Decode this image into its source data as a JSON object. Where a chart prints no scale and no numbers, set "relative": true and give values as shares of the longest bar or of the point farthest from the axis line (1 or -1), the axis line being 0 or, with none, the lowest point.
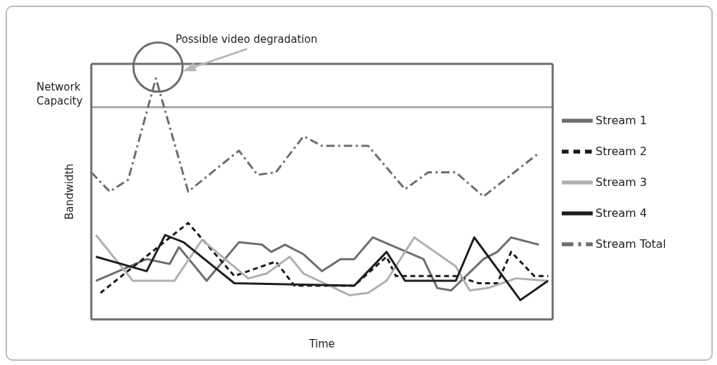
{
  "chart_data": {
    "type": "line",
    "relative": true,
    "xlabel": "Time",
    "ylabel": "Bandwidth",
    "legend": "right",
    "marker": "none",
    "categories": [
      null,
      null,
      null,
      null,
      null,
      null,
      null,
      null,
      null,
      null,
      null,
      null,
      null,
      null,
      null,
      null,
      null,
      null,
      null,
      null,
      null,
      null,
      null,
      null,
      null,
      null,
      null,
      null,
      null,
      null,
      null,
      null,
      null,
      null,
      null,
      null,
      null,
      null,
      null,
      null,
      null,
      null,
      null,
      null,
      null,
      null,
      null,
      null,
      null,
      null,
      null,
      null,
      null,
      null,
      null,
      null,
      null,
      null,
      null,
      null,
      null,
      null,
      null,
      null,
      null,
      null,
      null,
      null,
      null,
      null,
      null,
      null,
      null,
      null,
      null,
      null,
      null,
      null,
      null,
      null,
      null,
      null,
      null,
      null,
      null,
      null,
      null,
      null,
      null,
      null,
      null,
      null,
      null,
      null,
      null,
      null,
      null,
      null,
      null,
      null,
      null
    ],
    "annotations": [
      "Possible video degradation"
    ],
    "ref_lines": [
      {
        "axis": "y",
        "value": 0.88,
        "label": "Network Capacity",
        "color": "#aaaaaa"
      }
    ],
    "series": [
      {
        "name": "Stream 1",
        "color": "#6d6d6d",
        "line_style": "solid",
        "values": [
          null,
          0.16,
          null,
          null,
          null,
          null,
          null,
          null,
          null,
          null,
          null,
          null,
          0.25,
          null,
          null,
          null,
          null,
          0.23,
          null,
          0.3,
          null,
          null,
          null,
          null,
          null,
          0.16,
          null,
          null,
          null,
          null,
          null,
          null,
          0.32,
          null,
          null,
          null,
          null,
          0.31,
          null,
          0.28,
          null,
          null,
          0.31,
          null,
          null,
          null,
          0.27,
          null,
          null,
          null,
          0.2,
          null,
          null,
          null,
          0.25,
          null,
          null,
          0.25,
          null,
          null,
          null,
          0.34,
          null,
          null,
          null,
          null,
          null,
          null,
          null,
          null,
          null,
          null,
          0.25,
          null,
          null,
          0.13,
          null,
          null,
          0.12,
          null,
          null,
          null,
          null,
          null,
          null,
          0.25,
          null,
          null,
          0.28,
          null,
          null,
          0.34,
          null,
          null,
          null,
          null,
          null,
          0.31,
          null,
          null,
          null
        ]
      },
      {
        "name": "Stream 2",
        "color": "#1a1a1a",
        "line_style": "dashed",
        "values": [
          null,
          null,
          0.11,
          null,
          null,
          null,
          null,
          null,
          null,
          null,
          null,
          null,
          null,
          null,
          null,
          null,
          null,
          null,
          null,
          null,
          null,
          0.4,
          null,
          null,
          null,
          null,
          null,
          null,
          null,
          null,
          null,
          0.18,
          null,
          null,
          null,
          null,
          null,
          null,
          null,
          null,
          0.24,
          null,
          null,
          null,
          0.14,
          null,
          null,
          null,
          null,
          null,
          null,
          null,
          null,
          null,
          null,
          null,
          null,
          0.14,
          null,
          null,
          null,
          null,
          null,
          null,
          0.26,
          null,
          0.18,
          null,
          null,
          null,
          null,
          null,
          null,
          null,
          null,
          null,
          null,
          null,
          null,
          0.18,
          null,
          null,
          null,
          null,
          0.15,
          null,
          null,
          null,
          0.15,
          null,
          null,
          0.28,
          null,
          null,
          null,
          null,
          0.18,
          null,
          null,
          0.18,
          null
        ]
      },
      {
        "name": "Stream 3",
        "color": "#b0b0b0",
        "line_style": "solid",
        "values": [
          null,
          0.35,
          null,
          null,
          null,
          null,
          null,
          null,
          null,
          0.16,
          null,
          null,
          null,
          null,
          null,
          null,
          null,
          null,
          0.16,
          null,
          null,
          null,
          null,
          null,
          0.33,
          null,
          null,
          null,
          null,
          null,
          null,
          null,
          null,
          null,
          0.17,
          null,
          null,
          null,
          0.19,
          null,
          null,
          null,
          null,
          0.26,
          null,
          null,
          0.19,
          null,
          null,
          null,
          null,
          null,
          null,
          null,
          null,
          null,
          0.1,
          null,
          null,
          null,
          0.11,
          null,
          null,
          null,
          0.16,
          null,
          null,
          null,
          null,
          null,
          0.34,
          null,
          null,
          null,
          null,
          null,
          null,
          null,
          null,
          0.22,
          null,
          null,
          0.12,
          null,
          null,
          null,
          0.13,
          null,
          null,
          null,
          null,
          null,
          0.17,
          null,
          null,
          null,
          null,
          null,
          null,
          0.16,
          null
        ]
      },
      {
        "name": "Stream 4",
        "color": "#1e1e1e",
        "line_style": "solid",
        "values": [
          null,
          0.26,
          null,
          null,
          null,
          null,
          null,
          null,
          null,
          null,
          null,
          null,
          0.2,
          null,
          null,
          null,
          0.35,
          null,
          null,
          null,
          0.32,
          null,
          null,
          null,
          null,
          null,
          null,
          null,
          null,
          null,
          null,
          0.15,
          null,
          null,
          null,
          null,
          null,
          null,
          null,
          null,
          null,
          null,
          null,
          null,
          null,
          null,
          null,
          null,
          null,
          null,
          null,
          null,
          null,
          null,
          null,
          null,
          null,
          0.14,
          null,
          null,
          null,
          null,
          null,
          null,
          0.28,
          null,
          null,
          null,
          0.16,
          null,
          null,
          null,
          null,
          null,
          null,
          null,
          null,
          null,
          null,
          0.16,
          null,
          null,
          null,
          0.34,
          null,
          null,
          null,
          null,
          null,
          null,
          null,
          null,
          null,
          0.08,
          null,
          null,
          null,
          null,
          null,
          0.16,
          null
        ]
      },
      {
        "name": "Stream Total",
        "color": "#6d6d6d",
        "line_style": "dashdot",
        "values": [
          0.61,
          null,
          null,
          null,
          0.53,
          null,
          null,
          null,
          0.58,
          null,
          null,
          null,
          null,
          null,
          1,
          null,
          null,
          null,
          null,
          null,
          null,
          0.53,
          null,
          null,
          null,
          null,
          null,
          null,
          null,
          null,
          null,
          null,
          0.7,
          null,
          null,
          null,
          0.6,
          null,
          null,
          null,
          0.61,
          null,
          null,
          null,
          null,
          null,
          0.76,
          null,
          null,
          null,
          0.72,
          null,
          null,
          null,
          null,
          null,
          null,
          null,
          null,
          null,
          0.72,
          null,
          null,
          null,
          null,
          null,
          null,
          null,
          0.54,
          null,
          null,
          null,
          null,
          0.61,
          null,
          null,
          null,
          null,
          null,
          0.61,
          null,
          null,
          null,
          null,
          null,
          0.51,
          null,
          null,
          null,
          null,
          null,
          null,
          null,
          null,
          null,
          null,
          null,
          0.69,
          null,
          null,
          null
        ]
      }
    ]
  }
}
